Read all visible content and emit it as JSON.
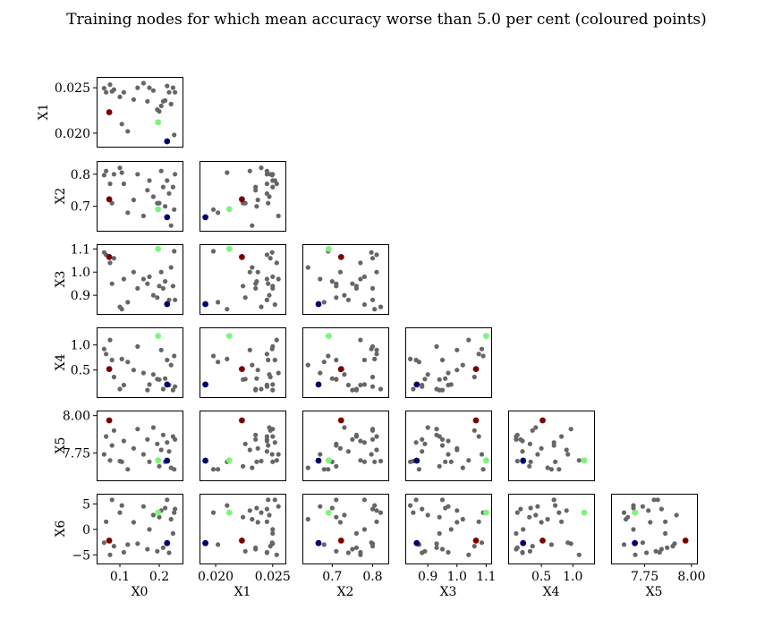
{
  "chart_data": {
    "type": "scatter",
    "layout": "lower-triangular-pairplot",
    "title": "Training nodes for which mean accuracy worse than 5.0 per cent (coloured points)",
    "variables": [
      "X0",
      "X1",
      "X2",
      "X3",
      "X4",
      "X5",
      "X6"
    ],
    "background_color": "#666666",
    "highlight_colors": [
      "#7b0000",
      "#7cf57c",
      "#000070"
    ],
    "axes": {
      "X0": {
        "range": [
          0.05,
          0.25
        ],
        "ticks": [
          0.1,
          0.2
        ],
        "tick_labels": [
          "0.1",
          "0.2"
        ]
      },
      "X1": {
        "range": [
          0.0189,
          0.0258
        ],
        "ticks": [
          0.02,
          0.025
        ],
        "tick_labels": [
          "0.020",
          "0.025"
        ]
      },
      "X2": {
        "range": [
          0.635,
          0.83
        ],
        "ticks": [
          0.7,
          0.8
        ],
        "tick_labels": [
          "0.7",
          "0.8"
        ]
      },
      "X3": {
        "range": [
          0.835,
          1.105
        ],
        "ticks": [
          0.9,
          1.0,
          1.1
        ],
        "tick_labels": [
          "0.9",
          "1.0",
          "1.1"
        ]
      },
      "X4": {
        "range": [
          0.03,
          1.28
        ],
        "ticks": [
          0.5,
          1.0
        ],
        "tick_labels": [
          "0.5",
          "1.0"
        ]
      },
      "X5": {
        "range": [
          7.59,
          8.01
        ],
        "ticks": [
          7.75,
          8.0
        ],
        "tick_labels": [
          "7.75",
          "8.00"
        ]
      },
      "X6": {
        "range": [
          -6.0,
          6.3
        ],
        "ticks": [
          -5,
          0,
          5
        ],
        "tick_labels": [
          "−5",
          "0",
          "5"
        ]
      }
    },
    "background_points": [
      [
        0.06,
        0.02495,
        0.797,
        1.085,
        0.92,
        7.74,
        -2.6
      ],
      [
        0.065,
        0.0245,
        0.81,
        1.075,
        0.82,
        7.86,
        1.5
      ],
      [
        0.075,
        0.02535,
        0.77,
        1.04,
        1.1,
        7.7,
        -5.0
      ],
      [
        0.08,
        0.0246,
        0.71,
        0.95,
        0.7,
        7.8,
        5.8
      ],
      [
        0.085,
        0.0248,
        0.8,
        1.06,
        0.36,
        7.9,
        -3.3
      ],
      [
        0.1,
        0.024,
        0.82,
        0.85,
        0.12,
        7.695,
        3.3
      ],
      [
        0.105,
        0.021,
        0.805,
        0.84,
        0.72,
        7.69,
        4.7
      ],
      [
        0.11,
        0.0245,
        0.77,
        0.97,
        0.2,
        7.83,
        -4.5
      ],
      [
        0.12,
        0.0202,
        0.68,
        0.87,
        0.66,
        7.64,
        -3.0
      ],
      [
        0.135,
        0.0237,
        0.72,
        1.0,
        0.5,
        7.78,
        1.4
      ],
      [
        0.145,
        0.025,
        0.8,
        0.93,
        0.97,
        7.91,
        -2.8
      ],
      [
        0.16,
        0.0255,
        0.67,
        0.97,
        0.44,
        7.74,
        4.5
      ],
      [
        0.17,
        0.0235,
        0.75,
        0.95,
        0.1,
        7.84,
        -3.9
      ],
      [
        0.175,
        0.025,
        0.78,
        0.98,
        0.21,
        7.69,
        0.0
      ],
      [
        0.185,
        0.0247,
        0.73,
        0.9,
        0.41,
        7.92,
        2.8
      ],
      [
        0.195,
        0.0226,
        0.71,
        0.89,
        0.32,
        7.81,
        -4.3
      ],
      [
        0.2,
        0.0224,
        0.71,
        0.94,
        0.31,
        7.66,
        2.4
      ],
      [
        0.205,
        0.023,
        0.81,
        1.0,
        0.9,
        7.77,
        3.7
      ],
      [
        0.21,
        0.0235,
        0.76,
        0.93,
        0.12,
        7.87,
        -3.6
      ],
      [
        0.215,
        0.0236,
        0.7,
        0.96,
        0.33,
        7.69,
        4.2
      ],
      [
        0.22,
        0.0252,
        0.78,
        0.86,
        0.7,
        7.82,
        5.8
      ],
      [
        0.225,
        0.0245,
        0.74,
        0.88,
        0.2,
        7.76,
        -4.6
      ],
      [
        0.23,
        0.0232,
        0.64,
        1.02,
        0.6,
        7.65,
        2.0
      ],
      [
        0.235,
        0.025,
        0.76,
        0.94,
        0.1,
        7.86,
        -0.8
      ],
      [
        0.24,
        0.0245,
        0.8,
        0.88,
        0.17,
        7.84,
        4.0
      ],
      [
        0.238,
        0.0198,
        0.69,
        1.09,
        0.78,
        7.64,
        3.3
      ]
    ],
    "highlight_points": [
      [
        0.073,
        0.0223,
        0.722,
        1.065,
        0.52,
        7.968,
        -2.2
      ],
      [
        0.197,
        0.0212,
        0.691,
        1.1,
        1.18,
        7.7,
        3.3
      ],
      [
        0.22,
        0.0191,
        0.666,
        0.862,
        0.21,
        7.698,
        -2.7
      ]
    ]
  }
}
